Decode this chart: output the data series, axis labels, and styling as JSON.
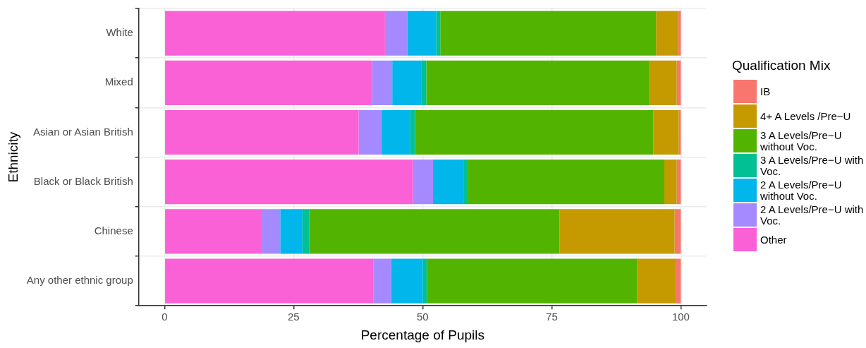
{
  "chart_data": {
    "type": "bar",
    "orientation": "horizontal",
    "stacked": true,
    "xlabel": "Percentage of Pupils",
    "ylabel": "Ethnicity",
    "legend_title": "Qualification Mix",
    "legend": "right",
    "grid": true,
    "categories": [
      "White",
      "Mixed",
      "Asian or Asian British",
      "Black or Black British",
      "Chinese",
      "Any other ethnic group"
    ],
    "xlim": [
      -5,
      105
    ],
    "xticks": [
      0,
      25,
      50,
      75,
      100
    ],
    "series": [
      {
        "name": "Other",
        "color": "#fb61d7",
        "values": [
          42.7,
          40.2,
          37.6,
          48.1,
          18.8,
          40.5
        ]
      },
      {
        "name": "2 A Levels/Pre−U with Voc.",
        "color": "#a58aff",
        "values": [
          4.3,
          3.9,
          4.4,
          3.9,
          3.6,
          3.4
        ]
      },
      {
        "name": "2 A Levels/Pre−U without Voc.",
        "color": "#00b6eb",
        "values": [
          5.6,
          5.7,
          5.6,
          6.0,
          4.3,
          6.1
        ]
      },
      {
        "name": "3 A Levels/Pre−U with Voc.",
        "color": "#00c094",
        "values": [
          0.8,
          0.9,
          0.9,
          0.7,
          1.3,
          0.8
        ]
      },
      {
        "name": "3 A Levels/Pre−U without Voc.",
        "color": "#53b400",
        "values": [
          41.8,
          43.3,
          46.2,
          38.1,
          48.5,
          40.7
        ]
      },
      {
        "name": "4+ A Levels /Pre−U",
        "color": "#c49a00",
        "values": [
          4.3,
          5.2,
          4.9,
          2.4,
          22.3,
          7.5
        ]
      },
      {
        "name": "IB",
        "color": "#f8766d",
        "values": [
          0.5,
          0.8,
          0.4,
          0.8,
          1.2,
          1.0
        ]
      }
    ]
  }
}
